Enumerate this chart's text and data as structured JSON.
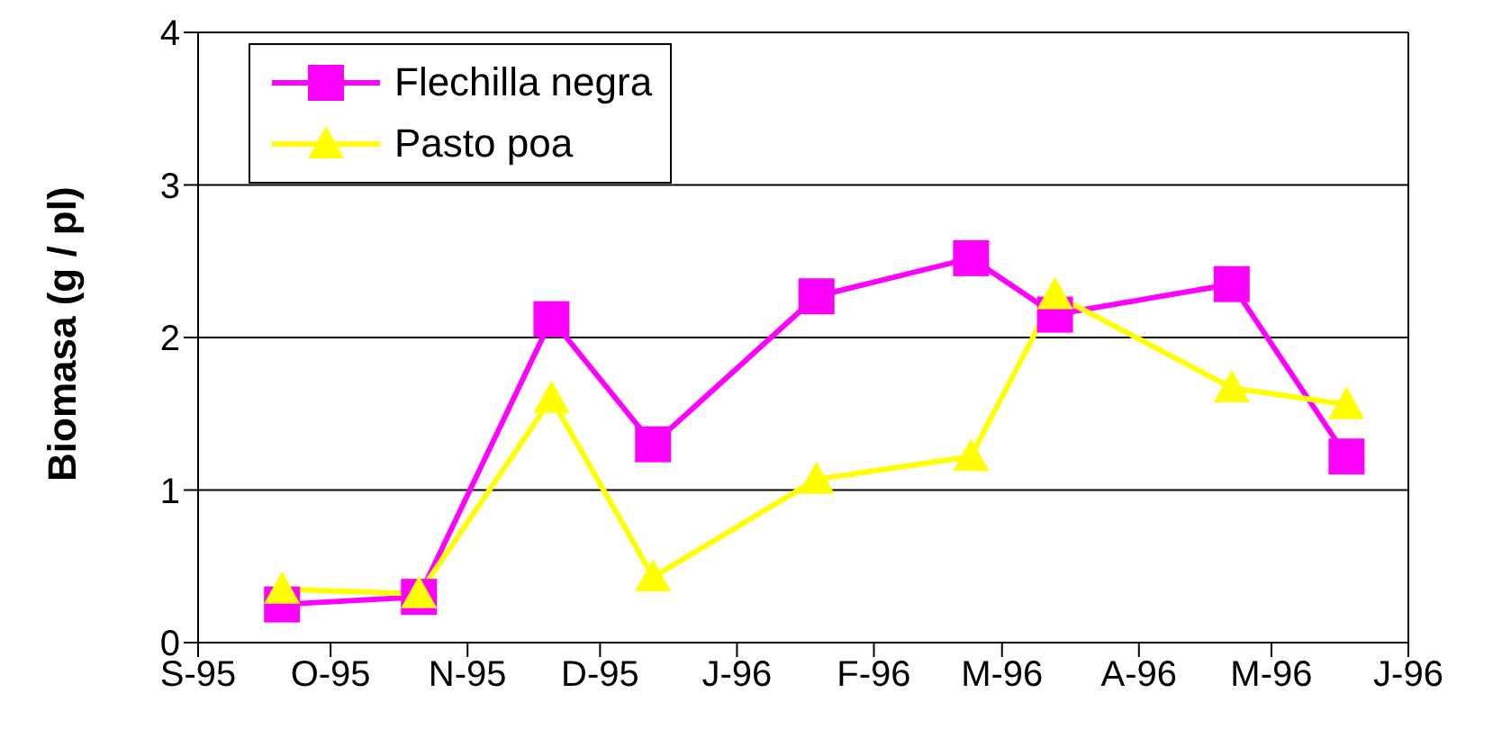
{
  "chart_data": {
    "type": "line",
    "ylabel": "Biomasa (g / pl)",
    "xlim": [
      "1995-09-01",
      "1996-06-01"
    ],
    "xticks": [
      {
        "value": "1995-09-01",
        "label": "S-95"
      },
      {
        "value": "1995-10-01",
        "label": "O-95"
      },
      {
        "value": "1995-11-01",
        "label": "N-95"
      },
      {
        "value": "1995-12-01",
        "label": "D-95"
      },
      {
        "value": "1996-01-01",
        "label": "J-96"
      },
      {
        "value": "1996-02-01",
        "label": "F-96"
      },
      {
        "value": "1996-03-01",
        "label": "M-96"
      },
      {
        "value": "1996-04-01",
        "label": "A-96"
      },
      {
        "value": "1996-05-01",
        "label": "M-96"
      },
      {
        "value": "1996-06-01",
        "label": "J-96"
      }
    ],
    "ylim": [
      0,
      4
    ],
    "yticks": [
      0,
      1,
      2,
      3,
      4
    ],
    "grid": "y",
    "legend": "top left",
    "x": [
      "1995-09-20",
      "1995-10-21",
      "1995-11-20",
      "1995-12-13",
      "1996-01-19",
      "1996-02-23",
      "1996-03-13",
      "1996-04-22",
      "1996-05-18"
    ],
    "series": [
      {
        "name": "Flechilla negra",
        "color": "#ff00ff",
        "marker": "square",
        "values": [
          0.25,
          0.3,
          2.12,
          1.3,
          2.27,
          2.52,
          2.15,
          2.35,
          1.22
        ]
      },
      {
        "name": "Pasto poa",
        "color": "#ffff00",
        "marker": "triangle",
        "values": [
          0.35,
          0.32,
          1.6,
          0.43,
          1.07,
          1.22,
          2.28,
          1.67,
          1.56
        ]
      }
    ]
  }
}
